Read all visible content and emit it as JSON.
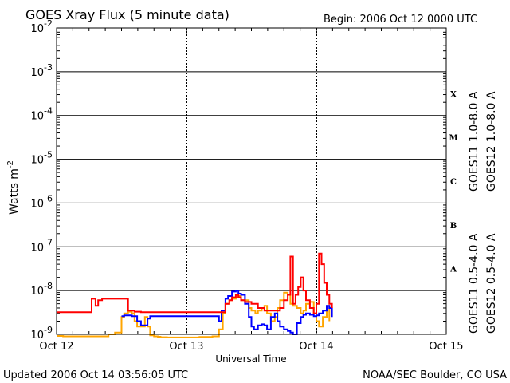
{
  "chart_data": {
    "type": "line",
    "title": "GOES Xray Flux (5 minute data)",
    "begin_label": "Begin:  2006 Oct 12 0000 UTC",
    "ylabel": "Watts m",
    "ylabel_sup": "-2",
    "xlabel": "Universal Time",
    "yscale": "log",
    "ylim_exp": [
      -9,
      -2
    ],
    "yticks": [
      {
        "base": "10",
        "exp": "-9"
      },
      {
        "base": "10",
        "exp": "-8"
      },
      {
        "base": "10",
        "exp": "-7"
      },
      {
        "base": "10",
        "exp": "-6"
      },
      {
        "base": "10",
        "exp": "-5"
      },
      {
        "base": "10",
        "exp": "-4"
      },
      {
        "base": "10",
        "exp": "-3"
      },
      {
        "base": "10",
        "exp": "-2"
      }
    ],
    "xrange_days": [
      0,
      3
    ],
    "xticks": [
      "Oct 12",
      "Oct 13",
      "Oct 14",
      "Oct 15"
    ],
    "flare_classes": [
      {
        "label": "A",
        "exp": -7.5
      },
      {
        "label": "B",
        "exp": -6.5
      },
      {
        "label": "C",
        "exp": -5.5
      },
      {
        "label": "M",
        "exp": -4.5
      },
      {
        "label": "X",
        "exp": -3.5
      }
    ],
    "series": [
      {
        "name": "GOES11 0.5-4.0 A",
        "color": "#ffa500",
        "x": [
          0,
          0.05,
          0.1,
          0.2,
          0.3,
          0.4,
          0.45,
          0.5,
          0.52,
          0.55,
          0.58,
          0.6,
          0.62,
          0.65,
          0.68,
          0.7,
          0.72,
          0.75,
          0.78,
          0.8,
          0.85,
          0.9,
          1.0,
          1.1,
          1.2,
          1.25,
          1.28,
          1.3,
          1.33,
          1.35,
          1.38,
          1.4,
          1.42,
          1.45,
          1.48,
          1.5,
          1.53,
          1.55,
          1.58,
          1.6,
          1.62,
          1.65,
          1.68,
          1.7,
          1.72,
          1.75,
          1.78,
          1.8,
          1.82,
          1.85,
          1.88,
          1.9,
          1.92,
          1.95,
          1.98,
          2.0,
          2.02,
          2.05,
          2.08,
          2.1
        ],
        "y": [
          9.2e-10,
          9e-10,
          9e-10,
          9e-10,
          9e-10,
          1e-09,
          1.1e-09,
          2.5e-09,
          3e-09,
          3.3e-09,
          3e-09,
          2e-09,
          1.5e-09,
          1.5e-09,
          2.5e-09,
          1.5e-09,
          9.5e-10,
          9e-10,
          8.8e-10,
          8.6e-10,
          8.5e-10,
          8.5e-10,
          8.5e-10,
          8.7e-10,
          9e-10,
          1.3e-09,
          3e-09,
          5e-09,
          6e-09,
          6.5e-09,
          7e-09,
          7.5e-09,
          6e-09,
          6e-09,
          4e-09,
          3.5e-09,
          3e-09,
          3.5e-09,
          4e-09,
          4.5e-09,
          3e-09,
          2e-09,
          2.5e-09,
          4e-09,
          6e-09,
          9e-09,
          8e-09,
          5e-09,
          4.5e-09,
          4e-09,
          3e-09,
          3.5e-09,
          5e-09,
          5.5e-09,
          3e-09,
          2e-09,
          1.5e-09,
          2.5e-09,
          4.5e-09,
          2e-09
        ]
      },
      {
        "name": "GOES12 0.5-4.0 A",
        "color": "#0000ff",
        "x": [
          0.5,
          0.52,
          0.55,
          0.58,
          0.6,
          0.62,
          0.65,
          0.68,
          0.7,
          0.72,
          1.25,
          1.27,
          1.3,
          1.32,
          1.35,
          1.38,
          1.4,
          1.42,
          1.45,
          1.48,
          1.5,
          1.52,
          1.55,
          1.58,
          1.6,
          1.62,
          1.65,
          1.68,
          1.7,
          1.72,
          1.75,
          1.78,
          1.8,
          1.82,
          1.85,
          1.88,
          1.9,
          1.92,
          1.95,
          1.98,
          2.0,
          2.02,
          2.05,
          2.08,
          2.1,
          2.12
        ],
        "y": [
          2.6e-09,
          2.7e-09,
          2.7e-09,
          2.6e-09,
          2.6e-09,
          2e-09,
          1.6e-09,
          1.6e-09,
          2.3e-09,
          2.6e-09,
          2e-09,
          3.5e-09,
          6.5e-09,
          7.5e-09,
          9.5e-09,
          1e-08,
          8.5e-09,
          8e-09,
          5e-09,
          2.5e-09,
          1.5e-09,
          1.3e-09,
          1.6e-09,
          1.7e-09,
          1.6e-09,
          1.3e-09,
          2.5e-09,
          3e-09,
          2e-09,
          1.5e-09,
          1.3e-09,
          1.2e-09,
          1.1e-09,
          1e-09,
          1.8e-09,
          2.5e-09,
          2.8e-09,
          3e-09,
          2.8e-09,
          2.6e-09,
          2.7e-09,
          3e-09,
          3.5e-09,
          4.5e-09,
          4e-09,
          2.5e-09
        ]
      },
      {
        "name": "GOES11 1.0-8.0 A",
        "color": "#800080",
        "x": [],
        "y": []
      },
      {
        "name": "GOES12 1.0-8.0 A",
        "color": "#ff0000",
        "x": [
          0,
          0.25,
          0.27,
          0.3,
          0.32,
          0.35,
          0.5,
          0.55,
          0.6,
          0.62,
          0.65,
          0.7,
          0.8,
          1.0,
          1.2,
          1.3,
          1.33,
          1.35,
          1.38,
          1.4,
          1.42,
          1.45,
          1.5,
          1.55,
          1.6,
          1.65,
          1.7,
          1.72,
          1.75,
          1.78,
          1.8,
          1.82,
          1.84,
          1.86,
          1.88,
          1.9,
          1.92,
          1.95,
          1.98,
          2.0,
          2.02,
          2.04,
          2.06,
          2.08,
          2.1,
          2.12
        ],
        "y": [
          3.2e-09,
          3.2e-09,
          6.5e-09,
          4.5e-09,
          6e-09,
          6.5e-09,
          6.5e-09,
          3.5e-09,
          3.3e-09,
          3.3e-09,
          3.2e-09,
          3.2e-09,
          3.2e-09,
          3.2e-09,
          3.2e-09,
          5e-09,
          6e-09,
          7e-09,
          8e-09,
          7e-09,
          6e-09,
          5.5e-09,
          5e-09,
          4e-09,
          3.5e-09,
          3.5e-09,
          3.5e-09,
          4e-09,
          6e-09,
          8e-09,
          6e-08,
          5e-09,
          8e-09,
          1.2e-08,
          2e-08,
          1e-08,
          6e-09,
          4e-09,
          3e-09,
          5e-09,
          7e-08,
          4e-08,
          1.5e-08,
          8e-09,
          5e-09,
          4e-09
        ]
      }
    ],
    "grid": true
  },
  "footer": {
    "updated": "Updated 2006 Oct 14 03:56:05 UTC",
    "credit": "NOAA/SEC Boulder, CO USA"
  }
}
